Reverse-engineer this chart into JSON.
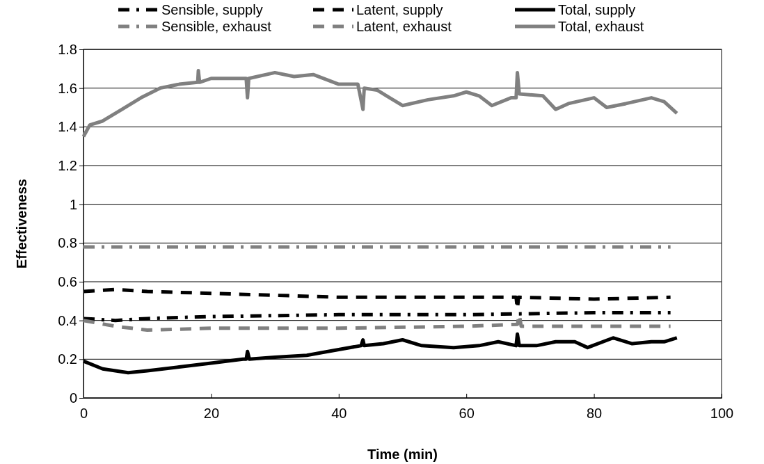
{
  "chart_data": {
    "type": "line",
    "xlabel": "Time (min)",
    "ylabel": "Effectiveness",
    "xlim": [
      0,
      100
    ],
    "xticks": [
      0,
      20,
      40,
      60,
      80,
      100
    ],
    "ylim": [
      0,
      1.8
    ],
    "yticks": [
      0,
      0.2,
      0.4,
      0.6,
      0.8,
      1,
      1.2,
      1.4,
      1.6,
      1.8
    ],
    "grid": "y",
    "legend": "top",
    "series": [
      {
        "name": "Sensible, supply",
        "color": "#000000",
        "line_style": "dashdot",
        "x": [
          0,
          5,
          10,
          20,
          40,
          60,
          80,
          92
        ],
        "values": [
          0.41,
          0.4,
          0.41,
          0.42,
          0.43,
          0.43,
          0.44,
          0.44
        ]
      },
      {
        "name": "Latent, supply",
        "color": "#000000",
        "line_style": "dashed",
        "x": [
          0,
          5,
          10,
          20,
          30,
          40,
          50,
          60,
          67.8,
          68,
          68.2,
          80,
          92
        ],
        "values": [
          0.55,
          0.56,
          0.55,
          0.54,
          0.53,
          0.52,
          0.52,
          0.52,
          0.52,
          0.46,
          0.52,
          0.51,
          0.52
        ]
      },
      {
        "name": "Total, supply",
        "color": "#000000",
        "line_style": "solid",
        "x": [
          0,
          3,
          7,
          10,
          15,
          20,
          25,
          25.5,
          25.7,
          26,
          30,
          35,
          40,
          43.5,
          43.8,
          44,
          47,
          50,
          53,
          58,
          62,
          65,
          67.8,
          68,
          68.3,
          71,
          74,
          77,
          79,
          83,
          86,
          89,
          91,
          93
        ],
        "values": [
          0.19,
          0.15,
          0.13,
          0.14,
          0.16,
          0.18,
          0.2,
          0.2,
          0.24,
          0.2,
          0.21,
          0.22,
          0.25,
          0.27,
          0.3,
          0.27,
          0.28,
          0.3,
          0.27,
          0.26,
          0.27,
          0.29,
          0.27,
          0.33,
          0.27,
          0.27,
          0.29,
          0.29,
          0.26,
          0.31,
          0.28,
          0.29,
          0.29,
          0.31
        ]
      },
      {
        "name": "Sensible, exhaust",
        "color": "#808080",
        "line_style": "dashdot",
        "x": [
          0,
          20,
          40,
          60,
          80,
          92
        ],
        "values": [
          0.78,
          0.78,
          0.78,
          0.78,
          0.78,
          0.78
        ]
      },
      {
        "name": "Latent, exhaust",
        "color": "#808080",
        "line_style": "dashed",
        "x": [
          0,
          5,
          10,
          20,
          40,
          60,
          68,
          68.3,
          68.6,
          80,
          92
        ],
        "values": [
          0.4,
          0.37,
          0.35,
          0.36,
          0.36,
          0.37,
          0.38,
          0.43,
          0.37,
          0.37,
          0.37
        ]
      },
      {
        "name": "Total, exhaust",
        "color": "#808080",
        "line_style": "solid",
        "x": [
          0,
          1,
          3,
          6,
          9,
          12,
          15,
          17.9,
          18,
          18.2,
          20,
          25.5,
          25.7,
          25.9,
          30,
          33,
          36,
          40,
          43,
          43.8,
          44,
          46,
          48,
          50,
          54,
          58,
          60,
          62,
          64,
          67,
          67.8,
          68,
          68.3,
          72,
          74,
          76,
          80,
          82,
          85,
          89,
          91,
          93
        ],
        "values": [
          1.35,
          1.41,
          1.43,
          1.49,
          1.55,
          1.6,
          1.62,
          1.63,
          1.69,
          1.63,
          1.65,
          1.65,
          1.55,
          1.65,
          1.68,
          1.66,
          1.67,
          1.62,
          1.62,
          1.49,
          1.6,
          1.59,
          1.55,
          1.51,
          1.54,
          1.56,
          1.58,
          1.56,
          1.51,
          1.55,
          1.55,
          1.68,
          1.57,
          1.56,
          1.49,
          1.52,
          1.55,
          1.5,
          1.52,
          1.55,
          1.53,
          1.47
        ]
      }
    ]
  }
}
